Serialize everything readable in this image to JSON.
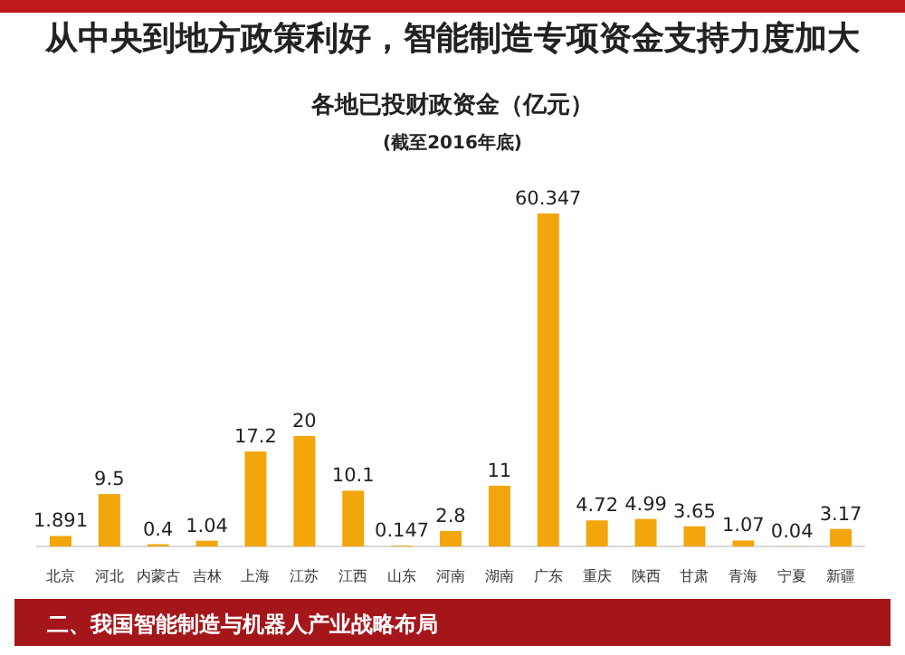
{
  "chart_data": {
    "type": "bar",
    "title": "从中央到地方政策利好，智能制造专项资金支持力度加大",
    "subtitle": "各地已投财政资金（亿元）",
    "annotations": [
      "(截至2016年底)",
      "二、我国智能制造与机器人产业战略布局"
    ],
    "categories": [
      "北京",
      "河北",
      "内蒙古",
      "吉林",
      "上海",
      "江苏",
      "江西",
      "山东",
      "河南",
      "湖南",
      "广东",
      "重庆",
      "陕西",
      "甘肃",
      "青海",
      "宁夏",
      "新疆"
    ],
    "values": [
      1.891,
      9.5,
      0.4,
      1.04,
      17.2,
      20,
      10.1,
      0.147,
      2.8,
      11,
      60.347,
      4.72,
      4.99,
      3.65,
      1.07,
      0.04,
      3.17
    ],
    "color": "#f2a60c",
    "data_labels": true
  }
}
